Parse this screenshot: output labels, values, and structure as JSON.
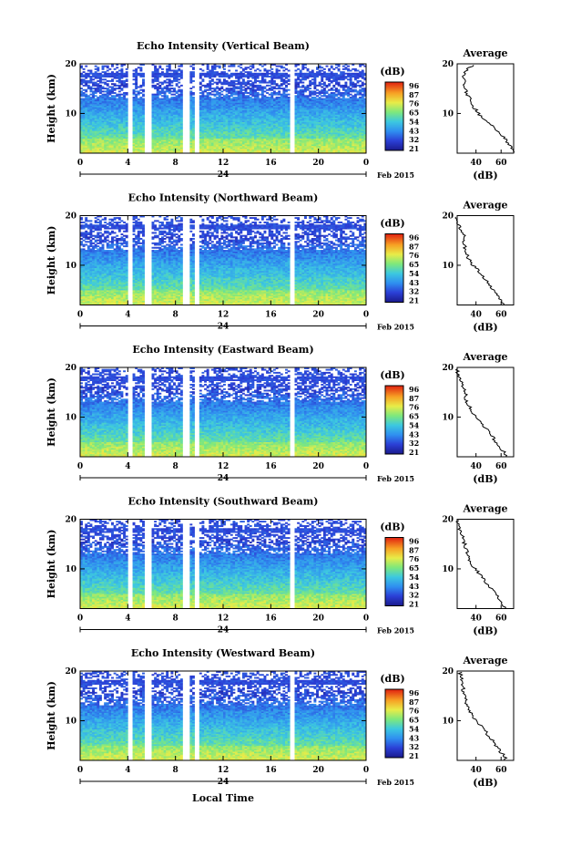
{
  "figure": {
    "date_label": "Feb 2015",
    "day_label": "24",
    "xlabel": "Local Time"
  },
  "chart_data": [
    {
      "type": "heatmap",
      "title": "Echo Intensity (Vertical Beam)",
      "ylabel": "Height (km)",
      "xlim": [
        0,
        24
      ],
      "ylim": [
        2,
        20
      ],
      "xticks": [
        "0",
        "4",
        "8",
        "12",
        "16",
        "20",
        "0"
      ],
      "yticks": [
        "20",
        "10"
      ],
      "colorbar": {
        "unit": "(dB)",
        "ticks": [
          "96",
          "87",
          "76",
          "65",
          "54",
          "43",
          "32",
          "21"
        ]
      },
      "data_gaps_hours": [
        [
          4.0,
          4.4
        ],
        [
          5.4,
          6.0
        ],
        [
          8.7,
          9.1
        ],
        [
          9.6,
          10.0
        ],
        [
          17.6,
          17.9
        ]
      ],
      "profile": {
        "title": "Average",
        "xlabel": "(dB)",
        "xticks": [
          "40",
          "60"
        ],
        "yticks": [
          "20",
          "10"
        ],
        "heights": [
          2,
          3,
          4,
          5,
          6,
          7,
          8,
          9,
          10,
          11,
          12,
          13,
          14,
          15,
          16,
          17,
          18,
          19,
          20
        ],
        "values": [
          70,
          68,
          66,
          63,
          58,
          55,
          50,
          46,
          42,
          39,
          36,
          35,
          33,
          31,
          31,
          30,
          31,
          34,
          38
        ]
      }
    },
    {
      "type": "heatmap",
      "title": "Echo Intensity (Northward Beam)",
      "ylabel": "Height (km)",
      "xlim": [
        0,
        24
      ],
      "ylim": [
        2,
        20
      ],
      "xticks": [
        "0",
        "4",
        "8",
        "12",
        "16",
        "20",
        "0"
      ],
      "yticks": [
        "20",
        "10"
      ],
      "colorbar": {
        "unit": "(dB)",
        "ticks": [
          "96",
          "87",
          "76",
          "65",
          "54",
          "43",
          "32",
          "21"
        ]
      },
      "data_gaps_hours": [
        [
          4.0,
          4.4
        ],
        [
          5.4,
          6.0
        ],
        [
          8.7,
          9.1
        ],
        [
          9.6,
          10.0
        ],
        [
          17.6,
          17.9
        ]
      ],
      "profile": {
        "title": "Average",
        "xlabel": "(dB)",
        "xticks": [
          "40",
          "60"
        ],
        "yticks": [
          "20",
          "10"
        ],
        "heights": [
          2,
          3,
          4,
          5,
          6,
          7,
          8,
          9,
          10,
          11,
          12,
          13,
          14,
          15,
          16,
          17,
          18,
          19,
          20
        ],
        "values": [
          62,
          60,
          57,
          54,
          51,
          48,
          45,
          42,
          38,
          35,
          33,
          32,
          31,
          30,
          31,
          28,
          26,
          25,
          25
        ]
      }
    },
    {
      "type": "heatmap",
      "title": "Echo Intensity (Eastward Beam)",
      "ylabel": "Height (km)",
      "xlim": [
        0,
        24
      ],
      "ylim": [
        2,
        20
      ],
      "xticks": [
        "0",
        "4",
        "8",
        "12",
        "16",
        "20",
        "0"
      ],
      "yticks": [
        "20",
        "10"
      ],
      "colorbar": {
        "unit": "(dB)",
        "ticks": [
          "96",
          "87",
          "76",
          "65",
          "54",
          "43",
          "32",
          "21"
        ]
      },
      "data_gaps_hours": [
        [
          4.0,
          4.4
        ],
        [
          5.4,
          6.0
        ],
        [
          8.7,
          9.1
        ],
        [
          9.6,
          10.0
        ],
        [
          17.6,
          17.9
        ]
      ],
      "profile": {
        "title": "Average",
        "xlabel": "(dB)",
        "xticks": [
          "40",
          "60"
        ],
        "yticks": [
          "20",
          "10"
        ],
        "heights": [
          2,
          3,
          4,
          5,
          6,
          7,
          8,
          9,
          10,
          11,
          12,
          13,
          14,
          15,
          16,
          17,
          18,
          19,
          20
        ],
        "values": [
          64,
          62,
          59,
          56,
          53,
          50,
          47,
          44,
          40,
          37,
          35,
          33,
          32,
          31,
          30,
          28,
          27,
          25,
          25
        ]
      }
    },
    {
      "type": "heatmap",
      "title": "Echo Intensity (Southward Beam)",
      "ylabel": "Height (km)",
      "xlim": [
        0,
        24
      ],
      "ylim": [
        2,
        20
      ],
      "xticks": [
        "0",
        "4",
        "8",
        "12",
        "16",
        "20",
        "0"
      ],
      "yticks": [
        "20",
        "10"
      ],
      "colorbar": {
        "unit": "(dB)",
        "ticks": [
          "96",
          "87",
          "76",
          "65",
          "54",
          "43",
          "32",
          "21"
        ]
      },
      "data_gaps_hours": [
        [
          4.0,
          4.4
        ],
        [
          5.4,
          6.0
        ],
        [
          8.7,
          9.1
        ],
        [
          9.6,
          10.0
        ],
        [
          17.6,
          17.9
        ]
      ],
      "profile": {
        "title": "Average",
        "xlabel": "(dB)",
        "xticks": [
          "40",
          "60"
        ],
        "yticks": [
          "20",
          "10"
        ],
        "heights": [
          2,
          3,
          4,
          5,
          6,
          7,
          8,
          9,
          10,
          11,
          12,
          13,
          14,
          15,
          16,
          17,
          18,
          19,
          20
        ],
        "values": [
          63,
          61,
          58,
          55,
          52,
          49,
          46,
          43,
          39,
          36,
          34,
          33,
          32,
          31,
          30,
          29,
          27,
          26,
          25
        ]
      }
    },
    {
      "type": "heatmap",
      "title": "Echo Intensity (Westward Beam)",
      "ylabel": "Height (km)",
      "xlim": [
        0,
        24
      ],
      "ylim": [
        2,
        20
      ],
      "xticks": [
        "0",
        "4",
        "8",
        "12",
        "16",
        "20",
        "0"
      ],
      "yticks": [
        "20",
        "10"
      ],
      "colorbar": {
        "unit": "(dB)",
        "ticks": [
          "96",
          "87",
          "76",
          "65",
          "54",
          "43",
          "32",
          "21"
        ]
      },
      "data_gaps_hours": [
        [
          4.0,
          4.4
        ],
        [
          5.4,
          6.0
        ],
        [
          8.7,
          9.1
        ],
        [
          9.6,
          10.0
        ],
        [
          17.6,
          17.9
        ]
      ],
      "profile": {
        "title": "Average",
        "xlabel": "(dB)",
        "xticks": [
          "40",
          "60"
        ],
        "yticks": [
          "20",
          "10"
        ],
        "heights": [
          2,
          3,
          4,
          5,
          6,
          7,
          8,
          9,
          10,
          11,
          12,
          13,
          14,
          15,
          16,
          17,
          18,
          19,
          20
        ],
        "values": [
          64,
          62,
          59,
          56,
          53,
          50,
          47,
          44,
          40,
          37,
          35,
          33,
          32,
          31,
          30,
          30,
          29,
          28,
          27
        ]
      }
    }
  ]
}
